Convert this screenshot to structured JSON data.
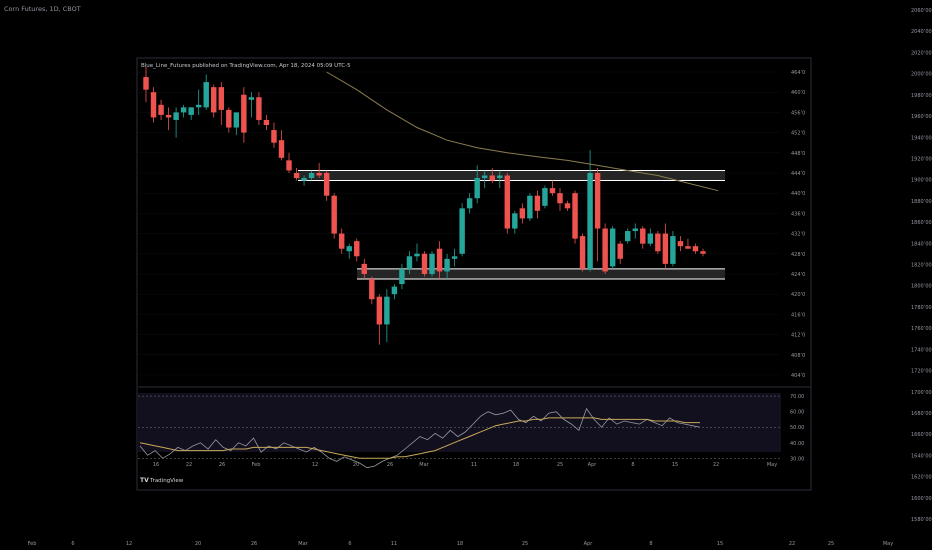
{
  "header": {
    "symbol_title": "Corn Futures, 1D, CBOT"
  },
  "embed": {
    "attribution": "Blue_Line_Futures published on TradingView.com, Apr 18, 2024 05:09 UTC-5",
    "watermark": "TradingView"
  },
  "outer_axis": {
    "y_ticks": [
      206000,
      204000,
      202000,
      200000,
      198000,
      196000,
      194000,
      192000,
      190000,
      188000,
      186000,
      184000,
      182000,
      180000,
      178000,
      176000,
      174000,
      172000,
      170000,
      168000,
      166000,
      164000,
      162000,
      160000,
      158000
    ],
    "x_ticks": [
      "Feb",
      "6",
      "12",
      "20",
      "26",
      "Mar",
      "6",
      "11",
      "18",
      "25",
      "Apr",
      "8",
      "15",
      "22",
      "25",
      "May"
    ]
  },
  "colors": {
    "background": "#000000",
    "panel": "#000000",
    "panel_border": "#2a2e39",
    "up": "#26a69a",
    "down": "#ef5350",
    "ma": "#8b7d4e",
    "zone_fill": "#2c2c2c",
    "zone_line": "#ffffff",
    "rsi_bg": "#120f1e",
    "rsi_line": "#9598a1",
    "rsi_ma": "#c8a95a",
    "text": "#9598a1"
  },
  "chart_data": [
    {
      "type": "candlestick",
      "title": "Corn Futures, 1D, CBOT",
      "y_ticks": [
        464.0,
        460.0,
        456.0,
        452.0,
        448.0,
        444.0,
        440.0,
        436.0,
        432.0,
        428.0,
        424.0,
        420.0,
        416.0,
        412.0,
        408.0,
        404.0
      ],
      "ylim": [
        403,
        464
      ],
      "x_ticks": [
        "16",
        "22",
        "26",
        "Feb",
        "12",
        "20",
        "26",
        "Mar",
        "11",
        "18",
        "25",
        "Apr",
        "8",
        "15",
        "22",
        "May"
      ],
      "zones": [
        {
          "low": 442.5,
          "high": 444.5
        },
        {
          "low": 423.0,
          "high": 425.0
        }
      ],
      "candles": [
        {
          "o": 463.0,
          "h": 465.0,
          "l": 458.0,
          "c": 460.5
        },
        {
          "o": 460.0,
          "h": 461.0,
          "l": 454.0,
          "c": 455.0
        },
        {
          "o": 457.5,
          "h": 458.5,
          "l": 454.5,
          "c": 455.5
        },
        {
          "o": 455.5,
          "h": 457.0,
          "l": 452.5,
          "c": 455.0
        },
        {
          "o": 454.5,
          "h": 457.0,
          "l": 451.0,
          "c": 456.0
        },
        {
          "o": 456.0,
          "h": 457.5,
          "l": 455.0,
          "c": 457.0
        },
        {
          "o": 455.5,
          "h": 457.0,
          "l": 454.5,
          "c": 457.0
        },
        {
          "o": 457.0,
          "h": 460.5,
          "l": 455.5,
          "c": 457.5
        },
        {
          "o": 457.0,
          "h": 463.5,
          "l": 456.5,
          "c": 462.0
        },
        {
          "o": 461.0,
          "h": 461.5,
          "l": 455.0,
          "c": 456.0
        },
        {
          "o": 461.0,
          "h": 462.0,
          "l": 453.5,
          "c": 456.5
        },
        {
          "o": 456.5,
          "h": 457.0,
          "l": 452.0,
          "c": 453.0
        },
        {
          "o": 453.0,
          "h": 456.0,
          "l": 451.5,
          "c": 456.0
        },
        {
          "o": 459.5,
          "h": 461.0,
          "l": 450.0,
          "c": 452.0
        },
        {
          "o": 458.5,
          "h": 460.0,
          "l": 455.0,
          "c": 459.0
        },
        {
          "o": 459.0,
          "h": 460.0,
          "l": 453.5,
          "c": 454.5
        },
        {
          "o": 454.5,
          "h": 455.5,
          "l": 452.5,
          "c": 453.5
        },
        {
          "o": 452.5,
          "h": 454.0,
          "l": 449.0,
          "c": 450.0
        },
        {
          "o": 450.5,
          "h": 452.5,
          "l": 446.5,
          "c": 447.0
        },
        {
          "o": 446.5,
          "h": 448.0,
          "l": 444.0,
          "c": 444.5
        },
        {
          "o": 444.0,
          "h": 445.0,
          "l": 442.5,
          "c": 443.0
        },
        {
          "o": 442.5,
          "h": 443.5,
          "l": 441.5,
          "c": 443.0
        },
        {
          "o": 443.0,
          "h": 444.5,
          "l": 442.5,
          "c": 444.0
        },
        {
          "o": 444.0,
          "h": 446.0,
          "l": 443.0,
          "c": 443.5
        },
        {
          "o": 444.0,
          "h": 444.5,
          "l": 438.5,
          "c": 439.5
        },
        {
          "o": 439.5,
          "h": 440.0,
          "l": 431.0,
          "c": 432.0
        },
        {
          "o": 432.0,
          "h": 433.0,
          "l": 428.0,
          "c": 429.0
        },
        {
          "o": 428.5,
          "h": 430.0,
          "l": 427.0,
          "c": 429.5
        },
        {
          "o": 430.5,
          "h": 431.0,
          "l": 426.5,
          "c": 427.5
        },
        {
          "o": 426.0,
          "h": 427.0,
          "l": 423.0,
          "c": 424.0
        },
        {
          "o": 423.0,
          "h": 423.5,
          "l": 418.0,
          "c": 419.0
        },
        {
          "o": 419.5,
          "h": 420.0,
          "l": 410.0,
          "c": 414.0
        },
        {
          "o": 414.0,
          "h": 421.0,
          "l": 410.5,
          "c": 419.5
        },
        {
          "o": 420.0,
          "h": 422.0,
          "l": 419.0,
          "c": 421.5
        },
        {
          "o": 422.0,
          "h": 426.0,
          "l": 421.0,
          "c": 425.0
        },
        {
          "o": 425.0,
          "h": 428.5,
          "l": 424.0,
          "c": 427.5
        },
        {
          "o": 427.5,
          "h": 430.0,
          "l": 426.5,
          "c": 428.0
        },
        {
          "o": 428.0,
          "h": 428.5,
          "l": 423.5,
          "c": 424.0
        },
        {
          "o": 424.0,
          "h": 428.5,
          "l": 423.5,
          "c": 428.0
        },
        {
          "o": 429.0,
          "h": 430.5,
          "l": 423.0,
          "c": 424.5
        },
        {
          "o": 424.5,
          "h": 428.0,
          "l": 423.0,
          "c": 427.0
        },
        {
          "o": 427.0,
          "h": 429.0,
          "l": 425.5,
          "c": 427.5
        },
        {
          "o": 428.0,
          "h": 438.0,
          "l": 427.5,
          "c": 437.0
        },
        {
          "o": 437.0,
          "h": 440.0,
          "l": 436.0,
          "c": 439.0
        },
        {
          "o": 439.0,
          "h": 445.5,
          "l": 438.0,
          "c": 443.0
        },
        {
          "o": 443.0,
          "h": 444.5,
          "l": 441.0,
          "c": 443.5
        },
        {
          "o": 443.5,
          "h": 445.0,
          "l": 442.0,
          "c": 442.5
        },
        {
          "o": 443.0,
          "h": 444.5,
          "l": 441.0,
          "c": 443.5
        },
        {
          "o": 443.5,
          "h": 444.0,
          "l": 432.0,
          "c": 433.0
        },
        {
          "o": 433.0,
          "h": 436.5,
          "l": 432.0,
          "c": 436.0
        },
        {
          "o": 437.0,
          "h": 438.0,
          "l": 434.0,
          "c": 435.0
        },
        {
          "o": 435.0,
          "h": 440.0,
          "l": 434.5,
          "c": 439.5
        },
        {
          "o": 439.5,
          "h": 440.5,
          "l": 435.0,
          "c": 436.5
        },
        {
          "o": 437.5,
          "h": 441.5,
          "l": 437.0,
          "c": 441.0
        },
        {
          "o": 441.0,
          "h": 442.5,
          "l": 439.5,
          "c": 440.0
        },
        {
          "o": 440.0,
          "h": 441.0,
          "l": 436.5,
          "c": 438.0
        },
        {
          "o": 438.0,
          "h": 438.5,
          "l": 436.5,
          "c": 437.0
        },
        {
          "o": 440.0,
          "h": 440.5,
          "l": 430.0,
          "c": 431.0
        },
        {
          "o": 431.5,
          "h": 432.0,
          "l": 424.5,
          "c": 425.0
        },
        {
          "o": 425.0,
          "h": 448.5,
          "l": 424.5,
          "c": 444.0
        },
        {
          "o": 444.0,
          "h": 445.0,
          "l": 426.5,
          "c": 433.0
        },
        {
          "o": 433.0,
          "h": 434.0,
          "l": 424.0,
          "c": 424.5
        },
        {
          "o": 425.5,
          "h": 433.5,
          "l": 425.0,
          "c": 433.0
        },
        {
          "o": 430.0,
          "h": 430.5,
          "l": 426.0,
          "c": 427.0
        },
        {
          "o": 430.5,
          "h": 433.0,
          "l": 430.0,
          "c": 432.5
        },
        {
          "o": 432.5,
          "h": 434.0,
          "l": 431.0,
          "c": 433.0
        },
        {
          "o": 433.0,
          "h": 433.5,
          "l": 429.0,
          "c": 430.0
        },
        {
          "o": 430.0,
          "h": 433.0,
          "l": 429.5,
          "c": 432.0
        },
        {
          "o": 432.0,
          "h": 432.5,
          "l": 428.0,
          "c": 428.5
        },
        {
          "o": 432.0,
          "h": 434.0,
          "l": 425.0,
          "c": 426.0
        },
        {
          "o": 426.0,
          "h": 432.5,
          "l": 425.5,
          "c": 431.5
        },
        {
          "o": 430.5,
          "h": 431.5,
          "l": 428.5,
          "c": 429.5
        },
        {
          "o": 429.5,
          "h": 431.0,
          "l": 429.0,
          "c": 429.0
        },
        {
          "o": 429.5,
          "h": 430.0,
          "l": 428.0,
          "c": 428.5
        },
        {
          "o": 428.5,
          "h": 429.0,
          "l": 427.5,
          "c": 428.0
        }
      ],
      "ma_series": [
        {
          "i": 24,
          "v": 464.0
        },
        {
          "i": 28,
          "v": 460.5
        },
        {
          "i": 32,
          "v": 456.5
        },
        {
          "i": 36,
          "v": 453.0
        },
        {
          "i": 40,
          "v": 450.5
        },
        {
          "i": 44,
          "v": 449.0
        },
        {
          "i": 48,
          "v": 448.0
        },
        {
          "i": 52,
          "v": 447.2
        },
        {
          "i": 56,
          "v": 446.5
        },
        {
          "i": 60,
          "v": 445.5
        },
        {
          "i": 64,
          "v": 444.5
        },
        {
          "i": 68,
          "v": 443.5
        },
        {
          "i": 72,
          "v": 442.0
        },
        {
          "i": 76,
          "v": 440.5
        }
      ]
    },
    {
      "type": "line",
      "title": "RSI",
      "y_ticks": [
        70.0,
        60.0,
        50.0,
        40.0,
        30.0
      ],
      "ylim": [
        27,
        72
      ],
      "levels": [
        70,
        50,
        30
      ],
      "series": [
        {
          "values": [
            38,
            32,
            35,
            30,
            33,
            37,
            35,
            38,
            40,
            36,
            42,
            37,
            35,
            40,
            38,
            43,
            34,
            38,
            36,
            40,
            38,
            36,
            34,
            37,
            34,
            30,
            28,
            31,
            29,
            27,
            24,
            25,
            28,
            30,
            32,
            36,
            40,
            44,
            42,
            46,
            43,
            48,
            44,
            47,
            52,
            57,
            60,
            58,
            59,
            61,
            55,
            53,
            57,
            54,
            59,
            60,
            55,
            52,
            48,
            62,
            55,
            50,
            56,
            52,
            54,
            53,
            52,
            55,
            53,
            51,
            56,
            53,
            52,
            51,
            50
          ]
        },
        {
          "values": [
            40,
            39,
            38,
            37,
            36,
            35,
            35,
            35,
            35,
            35,
            35,
            35,
            36,
            36,
            36,
            37,
            37,
            37,
            37,
            37,
            37,
            37,
            37,
            36,
            35,
            34,
            33,
            32,
            31,
            30,
            30,
            30,
            30,
            30,
            31,
            31,
            32,
            33,
            34,
            35,
            37,
            39,
            41,
            43,
            45,
            47,
            49,
            51,
            52,
            53,
            54,
            54,
            55,
            55,
            56,
            56,
            56,
            56,
            56,
            56,
            56,
            55,
            55,
            55,
            55,
            55,
            55,
            55,
            54,
            54,
            54,
            54,
            53,
            53,
            53
          ]
        }
      ]
    }
  ]
}
